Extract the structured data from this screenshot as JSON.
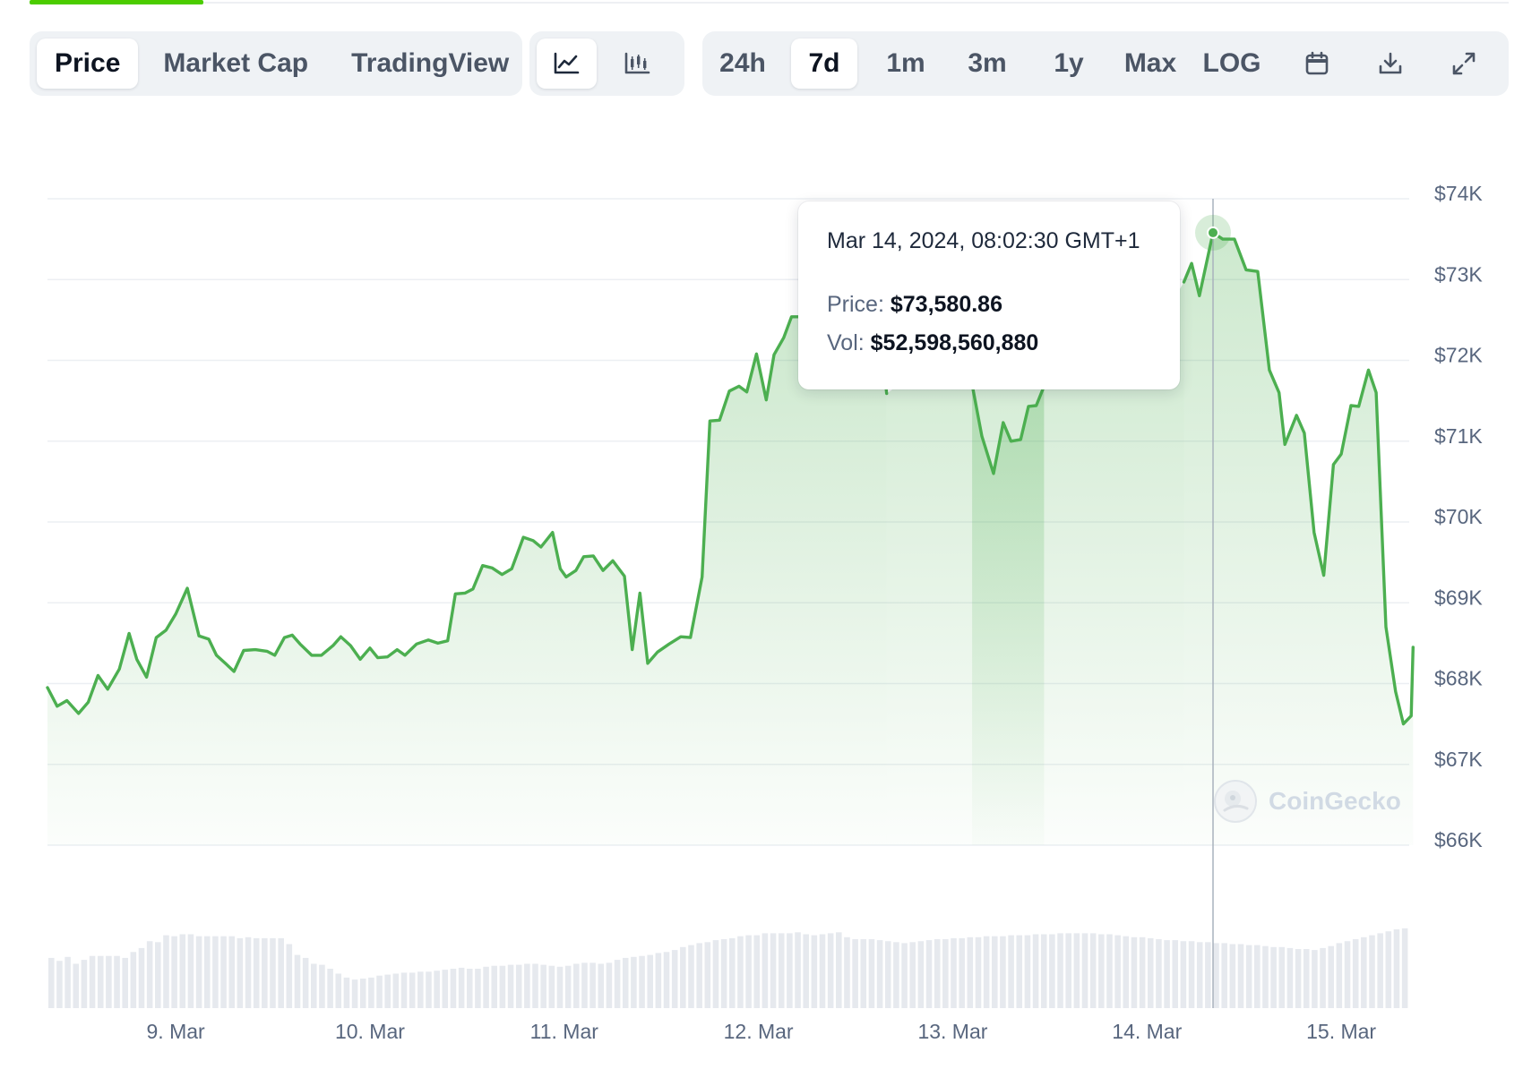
{
  "tabs": {
    "view": [
      "Price",
      "Market Cap",
      "TradingView"
    ],
    "active_view": "Price",
    "chart_kind_icons": [
      "line-chart-icon",
      "candlestick-chart-icon"
    ],
    "ranges": [
      "24h",
      "7d",
      "1m",
      "3m",
      "1y",
      "Max",
      "LOG"
    ],
    "active_range": "7d",
    "tool_icons": [
      "calendar-icon",
      "download-icon",
      "fullscreen-icon"
    ]
  },
  "tooltip": {
    "date": "Mar 14, 2024, 08:02:30 GMT+1",
    "price_label": "Price:",
    "price_value": "$73,580.86",
    "vol_label": "Vol:",
    "vol_value": "$52,598,560,880"
  },
  "watermark": "CoinGecko",
  "colors": {
    "line": "#4caf50",
    "volume": "#e6e9ee",
    "accent": "#4bcc00",
    "grid": "#eceff3"
  },
  "chart_data": {
    "type": "area",
    "y_ticks": [
      "$74K",
      "$73K",
      "$72K",
      "$71K",
      "$70K",
      "$69K",
      "$68K",
      "$67K",
      "$66K"
    ],
    "ylim": [
      66000,
      74000
    ],
    "x_ticks": [
      "9. Mar",
      "10. Mar",
      "11. Mar",
      "12. Mar",
      "13. Mar",
      "14. Mar",
      "15. Mar"
    ],
    "x_tick_days": [
      1,
      2,
      3,
      4,
      5,
      6,
      7
    ],
    "xlim_days": [
      0.34,
      7.35
    ],
    "hover_day": 6.34,
    "series": [
      {
        "values_usd": [
          [
            0.34,
            67950
          ],
          [
            0.39,
            67720
          ],
          [
            0.44,
            67790
          ],
          [
            0.5,
            67630
          ],
          [
            0.55,
            67770
          ],
          [
            0.6,
            68100
          ],
          [
            0.65,
            67930
          ],
          [
            0.71,
            68180
          ],
          [
            0.76,
            68620
          ],
          [
            0.8,
            68300
          ],
          [
            0.85,
            68080
          ],
          [
            0.9,
            68570
          ],
          [
            0.95,
            68660
          ],
          [
            1.0,
            68860
          ],
          [
            1.06,
            69180
          ],
          [
            1.12,
            68590
          ],
          [
            1.17,
            68550
          ],
          [
            1.21,
            68350
          ],
          [
            1.26,
            68240
          ],
          [
            1.3,
            68150
          ],
          [
            1.35,
            68410
          ],
          [
            1.41,
            68420
          ],
          [
            1.47,
            68400
          ],
          [
            1.51,
            68350
          ],
          [
            1.56,
            68570
          ],
          [
            1.6,
            68600
          ],
          [
            1.64,
            68490
          ],
          [
            1.7,
            68350
          ],
          [
            1.75,
            68350
          ],
          [
            1.81,
            68470
          ],
          [
            1.85,
            68580
          ],
          [
            1.9,
            68470
          ],
          [
            1.95,
            68300
          ],
          [
            2.0,
            68440
          ],
          [
            2.04,
            68320
          ],
          [
            2.09,
            68330
          ],
          [
            2.14,
            68420
          ],
          [
            2.18,
            68350
          ],
          [
            2.24,
            68490
          ],
          [
            2.3,
            68540
          ],
          [
            2.35,
            68500
          ],
          [
            2.4,
            68530
          ],
          [
            2.44,
            69110
          ],
          [
            2.49,
            69120
          ],
          [
            2.53,
            69170
          ],
          [
            2.58,
            69460
          ],
          [
            2.63,
            69430
          ],
          [
            2.68,
            69350
          ],
          [
            2.73,
            69420
          ],
          [
            2.79,
            69810
          ],
          [
            2.84,
            69770
          ],
          [
            2.88,
            69690
          ],
          [
            2.94,
            69870
          ],
          [
            2.98,
            69420
          ],
          [
            3.01,
            69320
          ],
          [
            3.06,
            69400
          ],
          [
            3.1,
            69570
          ],
          [
            3.15,
            69580
          ],
          [
            3.2,
            69400
          ],
          [
            3.25,
            69520
          ],
          [
            3.31,
            69330
          ],
          [
            3.35,
            68420
          ],
          [
            3.39,
            69120
          ],
          [
            3.43,
            68250
          ],
          [
            3.48,
            68390
          ],
          [
            3.54,
            68490
          ],
          [
            3.6,
            68580
          ],
          [
            3.65,
            68570
          ],
          [
            3.71,
            69320
          ],
          [
            3.75,
            71250
          ],
          [
            3.8,
            71260
          ],
          [
            3.85,
            71620
          ],
          [
            3.9,
            71680
          ],
          [
            3.94,
            71610
          ],
          [
            3.99,
            72080
          ],
          [
            4.04,
            71510
          ],
          [
            4.08,
            72070
          ],
          [
            4.13,
            72280
          ],
          [
            4.17,
            72540
          ],
          [
            4.22,
            72540
          ],
          [
            4.26,
            72380
          ],
          [
            4.31,
            72080
          ],
          [
            4.35,
            72120
          ],
          [
            4.4,
            72320
          ],
          [
            4.45,
            72470
          ],
          [
            4.5,
            72150
          ],
          [
            4.54,
            72130
          ],
          [
            4.59,
            72400
          ],
          [
            4.63,
            72290
          ],
          [
            4.66,
            71590
          ]
        ]
      },
      {
        "values_usd": [
          [
            5.1,
            71700
          ],
          [
            5.15,
            71060
          ],
          [
            5.21,
            70600
          ],
          [
            5.26,
            71230
          ],
          [
            5.3,
            71000
          ],
          [
            5.35,
            71020
          ],
          [
            5.39,
            71430
          ],
          [
            5.43,
            71440
          ],
          [
            5.47,
            71680
          ]
        ]
      },
      {
        "values_usd": [
          [
            6.19,
            72970
          ],
          [
            6.23,
            73200
          ],
          [
            6.27,
            72800
          ],
          [
            6.34,
            73580
          ],
          [
            6.39,
            73500
          ],
          [
            6.45,
            73500
          ],
          [
            6.51,
            73120
          ],
          [
            6.57,
            73100
          ],
          [
            6.63,
            71880
          ],
          [
            6.68,
            71600
          ],
          [
            6.71,
            70960
          ],
          [
            6.77,
            71320
          ],
          [
            6.81,
            71100
          ],
          [
            6.86,
            69870
          ],
          [
            6.91,
            69340
          ],
          [
            6.96,
            70710
          ],
          [
            7.0,
            70840
          ],
          [
            7.05,
            71440
          ],
          [
            7.09,
            71430
          ],
          [
            7.14,
            71880
          ],
          [
            7.18,
            71600
          ],
          [
            7.23,
            68700
          ],
          [
            7.28,
            67900
          ],
          [
            7.32,
            67500
          ],
          [
            7.36,
            67600
          ],
          [
            7.37,
            68450
          ]
        ]
      }
    ],
    "volume_relative": [
      0.51,
      0.48,
      0.52,
      0.45,
      0.49,
      0.53,
      0.53,
      0.53,
      0.53,
      0.51,
      0.57,
      0.61,
      0.68,
      0.67,
      0.74,
      0.73,
      0.75,
      0.75,
      0.73,
      0.73,
      0.73,
      0.73,
      0.73,
      0.71,
      0.72,
      0.71,
      0.71,
      0.71,
      0.71,
      0.65,
      0.54,
      0.51,
      0.45,
      0.44,
      0.4,
      0.35,
      0.31,
      0.29,
      0.3,
      0.31,
      0.33,
      0.34,
      0.35,
      0.36,
      0.36,
      0.37,
      0.37,
      0.38,
      0.39,
      0.4,
      0.41,
      0.4,
      0.4,
      0.42,
      0.43,
      0.43,
      0.44,
      0.44,
      0.45,
      0.45,
      0.44,
      0.43,
      0.42,
      0.43,
      0.45,
      0.46,
      0.46,
      0.45,
      0.46,
      0.49,
      0.51,
      0.52,
      0.53,
      0.54,
      0.56,
      0.57,
      0.59,
      0.62,
      0.64,
      0.66,
      0.67,
      0.69,
      0.7,
      0.71,
      0.73,
      0.74,
      0.74,
      0.76,
      0.76,
      0.76,
      0.76,
      0.77,
      0.75,
      0.74,
      0.75,
      0.76,
      0.77,
      0.72,
      0.7,
      0.7,
      0.7,
      0.69,
      0.68,
      0.67,
      0.66,
      0.67,
      0.68,
      0.69,
      0.7,
      0.7,
      0.71,
      0.71,
      0.72,
      0.72,
      0.73,
      0.73,
      0.73,
      0.74,
      0.74,
      0.74,
      0.75,
      0.75,
      0.75,
      0.76,
      0.76,
      0.76,
      0.76,
      0.76,
      0.75,
      0.75,
      0.74,
      0.73,
      0.72,
      0.72,
      0.71,
      0.7,
      0.69,
      0.69,
      0.68,
      0.68,
      0.67,
      0.67,
      0.66,
      0.66,
      0.65,
      0.65,
      0.64,
      0.64,
      0.63,
      0.62,
      0.62,
      0.61,
      0.6,
      0.6,
      0.59,
      0.61,
      0.63,
      0.66,
      0.68,
      0.7,
      0.72,
      0.74,
      0.76,
      0.78,
      0.8,
      0.81
    ]
  }
}
